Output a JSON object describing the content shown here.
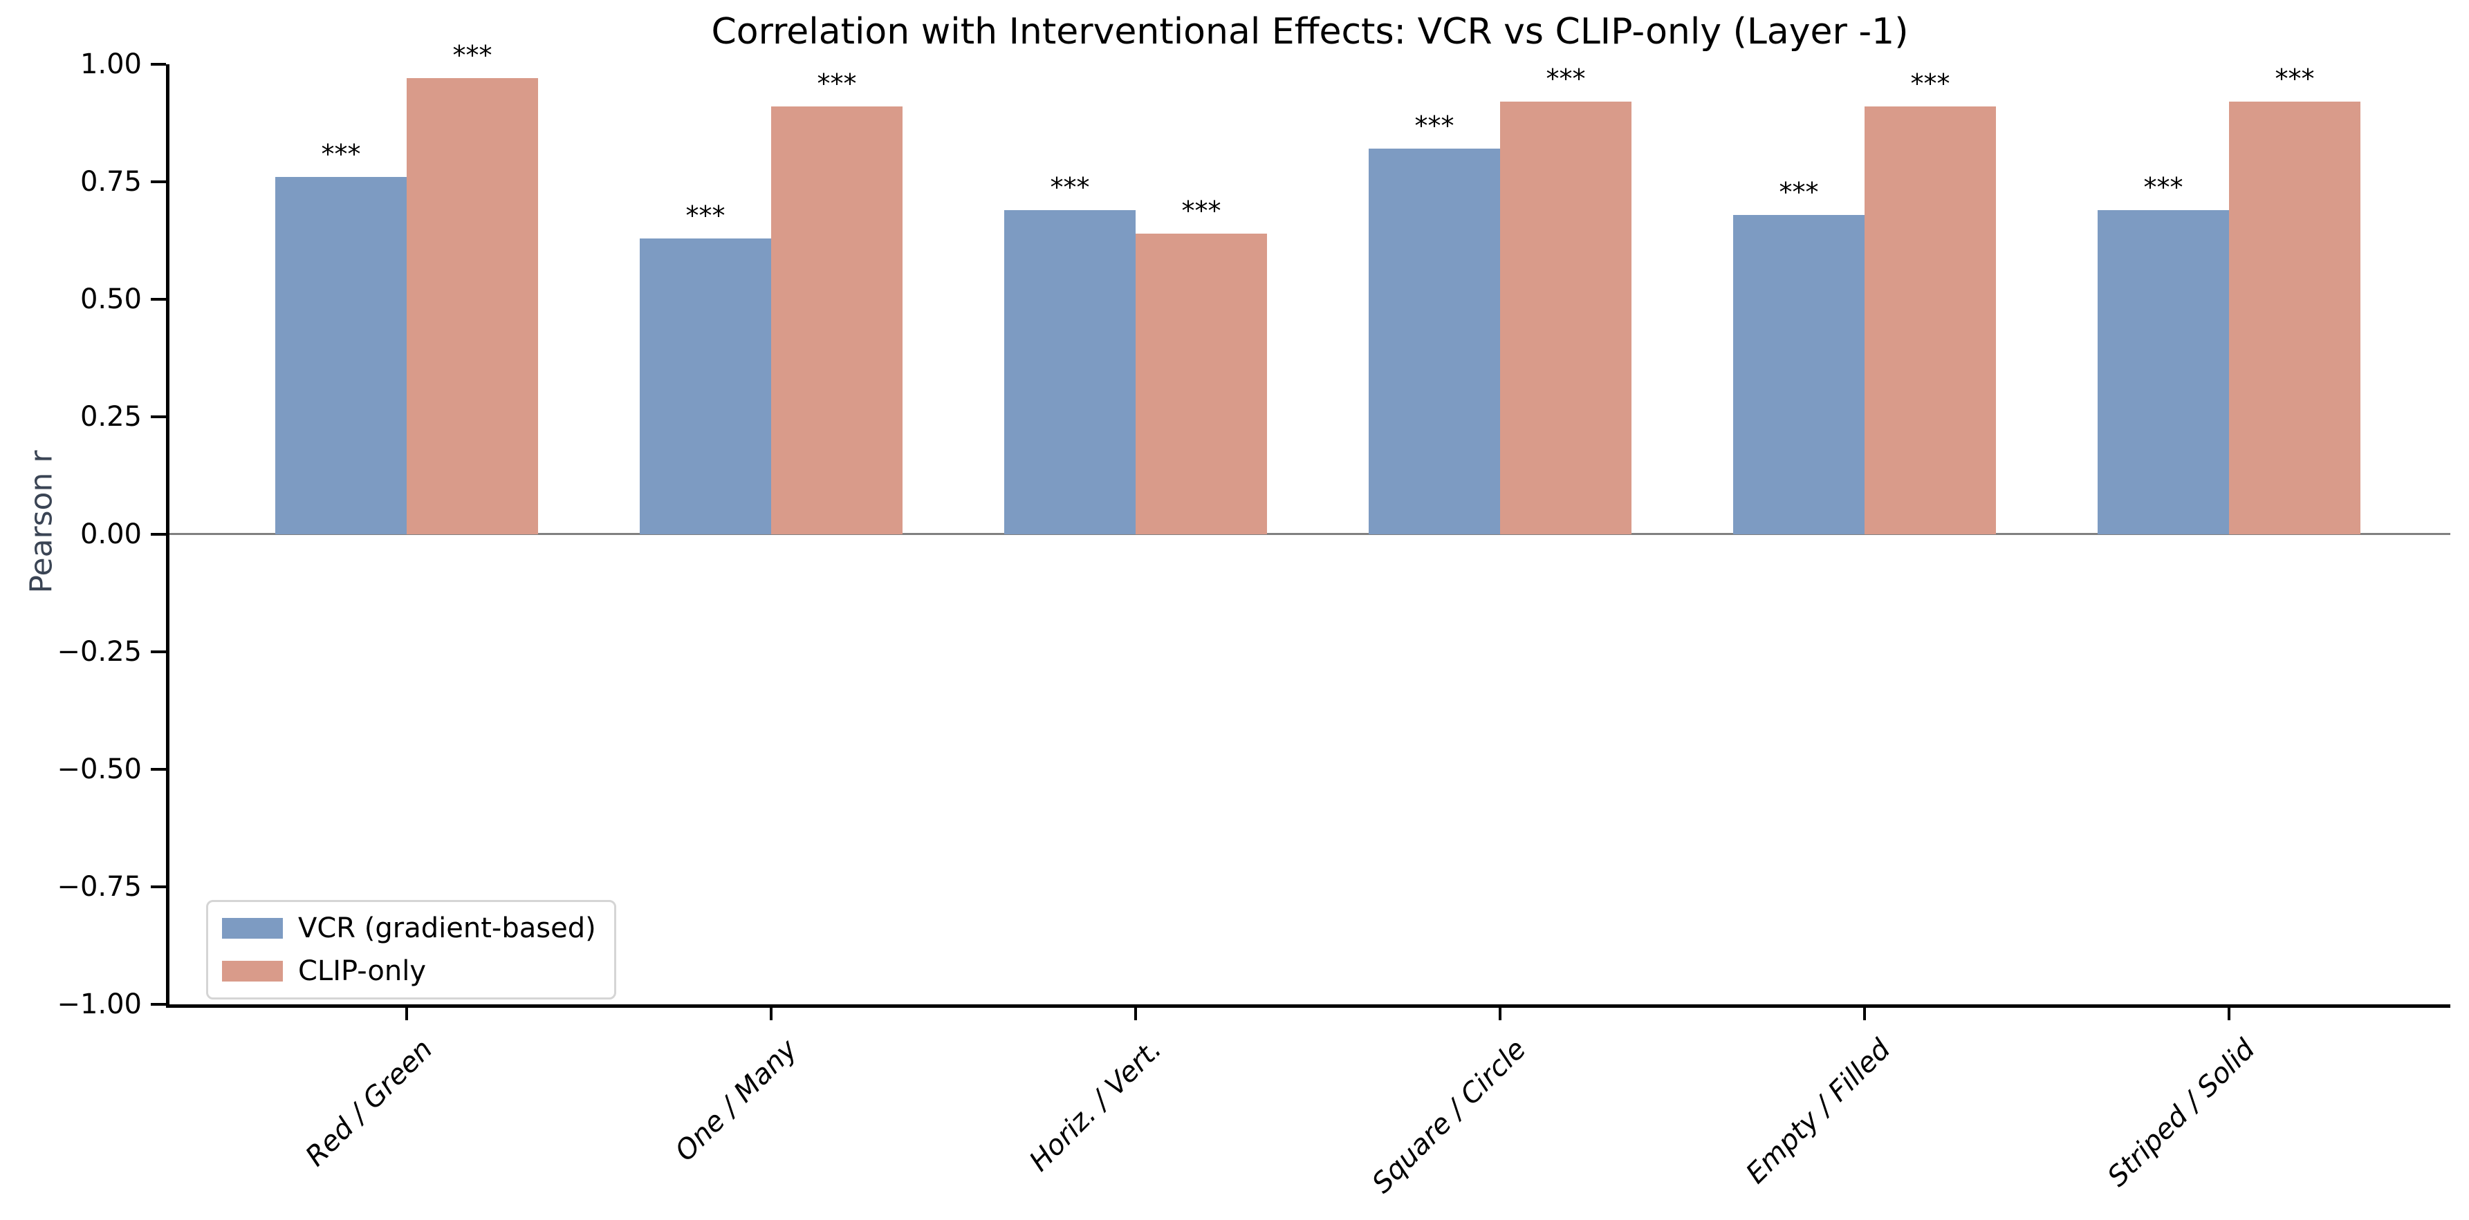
{
  "chart_data": {
    "type": "bar",
    "title": "Correlation with Interventional Effects: VCR vs CLIP-only (Layer -1)",
    "xlabel": "",
    "ylabel": "Pearson r",
    "categories": [
      "Red / Green",
      "One / Many",
      "Horiz. / Vert.",
      "Square / Circle",
      "Empty / Filled",
      "Striped / Solid"
    ],
    "series": [
      {
        "name": "VCR (gradient-based)",
        "color": "#7d9bc2",
        "values": [
          0.76,
          0.63,
          0.69,
          0.82,
          0.68,
          0.69
        ],
        "significance": [
          "***",
          "***",
          "***",
          "***",
          "***",
          "***"
        ]
      },
      {
        "name": "CLIP-only",
        "color": "#d99b8a",
        "values": [
          0.97,
          0.91,
          0.64,
          0.92,
          0.91,
          0.92
        ],
        "significance": [
          "***",
          "***",
          "***",
          "***",
          "***",
          "***"
        ]
      }
    ],
    "ylim": [
      -1.0,
      1.0
    ],
    "ytick_values": [
      1.0,
      0.75,
      0.5,
      0.25,
      0.0,
      -0.25,
      -0.5,
      -0.75,
      -1.0
    ],
    "yticks": [
      "1.00",
      "0.75",
      "0.50",
      "0.25",
      "0.00",
      "−0.25",
      "−0.50",
      "−0.75",
      "−1.00"
    ],
    "grid": false,
    "zero_line": true,
    "legend_position": "lower left"
  },
  "colors": {
    "axis": "#000000",
    "zero_line": "#808080",
    "ylabel_text": "#3a4454",
    "legend_border": "#d5d5d5",
    "vcr_bar": "#7d9bc2",
    "clip_bar": "#d99b8a"
  }
}
